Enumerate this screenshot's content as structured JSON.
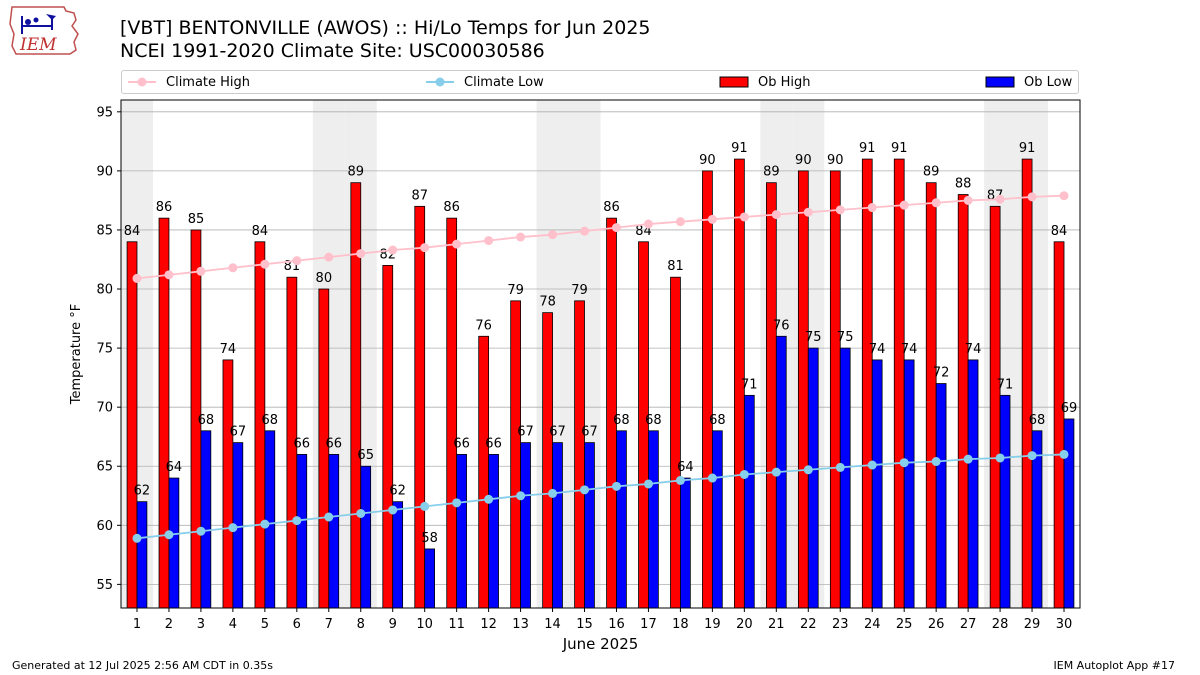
{
  "header": {
    "logo_text": "IEM",
    "title": "[VBT] BENTONVILLE (AWOS) :: Hi/Lo Temps for Jun 2025",
    "subtitle": "NCEI 1991-2020 Climate Site: USC00030586"
  },
  "legend": {
    "climate_high": "Climate High",
    "climate_low": "Climate Low",
    "ob_high": "Ob High",
    "ob_low": "Ob Low"
  },
  "footer": {
    "generated": "Generated at 12 Jul 2025 2:56 AM CDT in 0.35s",
    "app": "IEM Autoplot App #17"
  },
  "colors": {
    "ob_high": "#ff0000",
    "ob_low": "#0000ff",
    "climate_high": "#ffc0cb",
    "climate_low": "#87ceeb",
    "weekend_band": "#eeeeee",
    "grid": "#b0b0b0"
  },
  "chart_data": {
    "type": "bar",
    "xlabel": "June 2025",
    "ylabel": "Temperature °F",
    "ylim": [
      53,
      96
    ],
    "yticks": [
      55,
      60,
      65,
      70,
      75,
      80,
      85,
      90,
      95
    ],
    "grid": "horizontal",
    "legend_position": "top",
    "weekend_bands": [
      1,
      7,
      8,
      14,
      15,
      21,
      22,
      28,
      29
    ],
    "categories": [
      1,
      2,
      3,
      4,
      5,
      6,
      7,
      8,
      9,
      10,
      11,
      12,
      13,
      14,
      15,
      16,
      17,
      18,
      19,
      20,
      21,
      22,
      23,
      24,
      25,
      26,
      27,
      28,
      29,
      30
    ],
    "series": [
      {
        "name": "Ob High",
        "kind": "bar",
        "values": [
          84,
          86,
          85,
          74,
          84,
          81,
          80,
          89,
          82,
          87,
          86,
          76,
          79,
          78,
          79,
          86,
          84,
          81,
          90,
          91,
          89,
          90,
          90,
          91,
          91,
          89,
          88,
          87,
          91,
          84
        ]
      },
      {
        "name": "Ob Low",
        "kind": "bar",
        "values": [
          62,
          64,
          68,
          67,
          68,
          66,
          66,
          65,
          62,
          58,
          66,
          66,
          67,
          67,
          67,
          68,
          68,
          64,
          68,
          71,
          76,
          75,
          75,
          74,
          74,
          72,
          74,
          71,
          68,
          69
        ]
      },
      {
        "name": "Climate High",
        "kind": "line",
        "values": [
          80.9,
          81.2,
          81.5,
          81.8,
          82.1,
          82.4,
          82.7,
          83.0,
          83.3,
          83.5,
          83.8,
          84.1,
          84.4,
          84.6,
          84.9,
          85.2,
          85.5,
          85.7,
          85.9,
          86.1,
          86.3,
          86.5,
          86.7,
          86.9,
          87.1,
          87.3,
          87.5,
          87.6,
          87.8,
          87.9
        ]
      },
      {
        "name": "Climate Low",
        "kind": "line",
        "values": [
          58.9,
          59.2,
          59.5,
          59.8,
          60.1,
          60.4,
          60.7,
          61.0,
          61.3,
          61.6,
          61.9,
          62.2,
          62.5,
          62.7,
          63.0,
          63.3,
          63.5,
          63.8,
          64.0,
          64.3,
          64.5,
          64.7,
          64.9,
          65.1,
          65.3,
          65.4,
          65.6,
          65.7,
          65.9,
          66.0
        ]
      }
    ]
  }
}
